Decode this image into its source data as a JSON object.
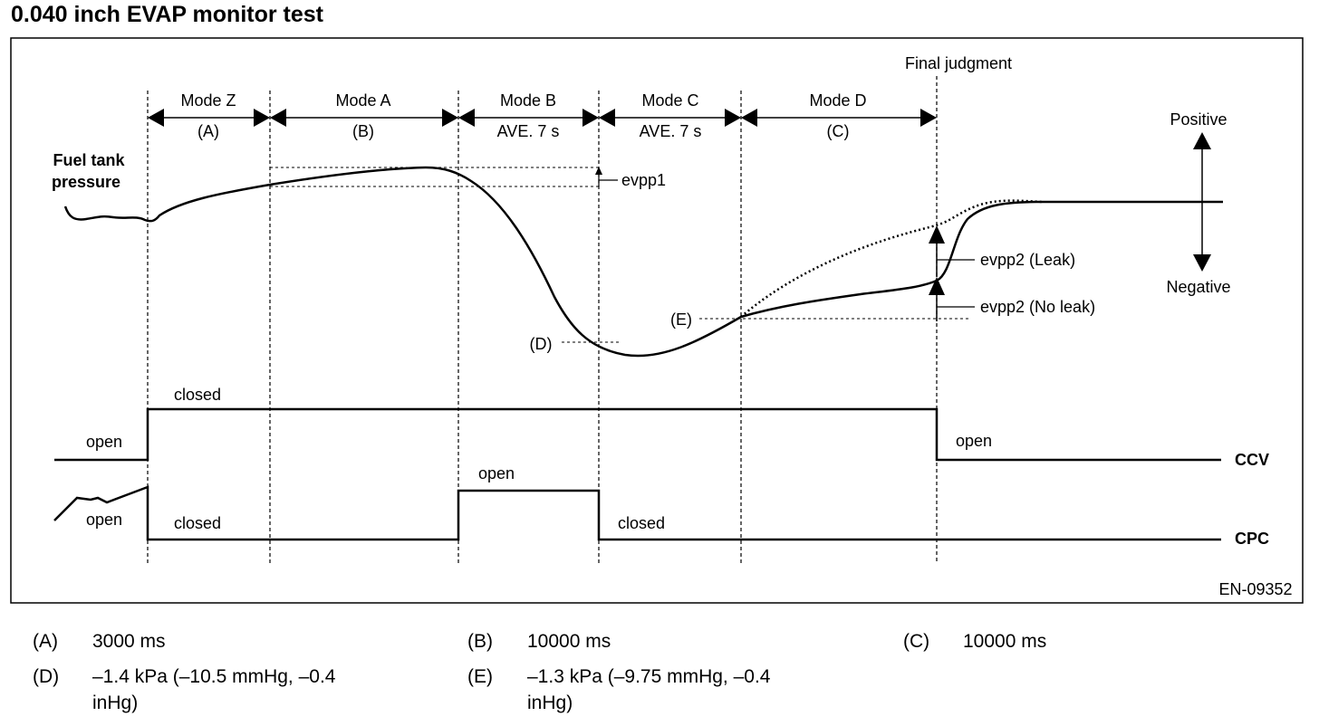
{
  "title": "0.040 inch EVAP monitor test",
  "final_judgment": "Final judgment",
  "modes": [
    {
      "name": "Mode Z",
      "sub": "(A)"
    },
    {
      "name": "Mode A",
      "sub": "(B)"
    },
    {
      "name": "Mode B",
      "sub": "AVE. 7 s"
    },
    {
      "name": "Mode C",
      "sub": "AVE. 7 s"
    },
    {
      "name": "Mode D",
      "sub": "(C)"
    }
  ],
  "fuel_tank_label_1": "Fuel tank",
  "fuel_tank_label_2": "pressure",
  "positive": "Positive",
  "negative": "Negative",
  "evpp1": "evpp1",
  "evpp2_leak": "evpp2 (Leak)",
  "evpp2_noleak": "evpp2 (No leak)",
  "marker_d": "(D)",
  "marker_e": "(E)",
  "ccv": {
    "name": "CCV",
    "open_left": "open",
    "closed": "closed",
    "open_right": "open"
  },
  "cpc": {
    "name": "CPC",
    "open_left": "open",
    "closed_left": "closed",
    "open_mid": "open",
    "closed_right": "closed"
  },
  "figure_code": "EN-09352",
  "legend": [
    {
      "key": "(A)",
      "value": "3000 ms"
    },
    {
      "key": "(B)",
      "value": "10000 ms"
    },
    {
      "key": "(C)",
      "value": "10000 ms"
    },
    {
      "key": "(D)",
      "value": "–1.4 kPa (–10.5 mmHg, –0.4",
      "value2": "inHg)"
    },
    {
      "key": "(E)",
      "value": "–1.3 kPa (–9.75 mmHg, –0.4",
      "value2": "inHg)"
    }
  ]
}
